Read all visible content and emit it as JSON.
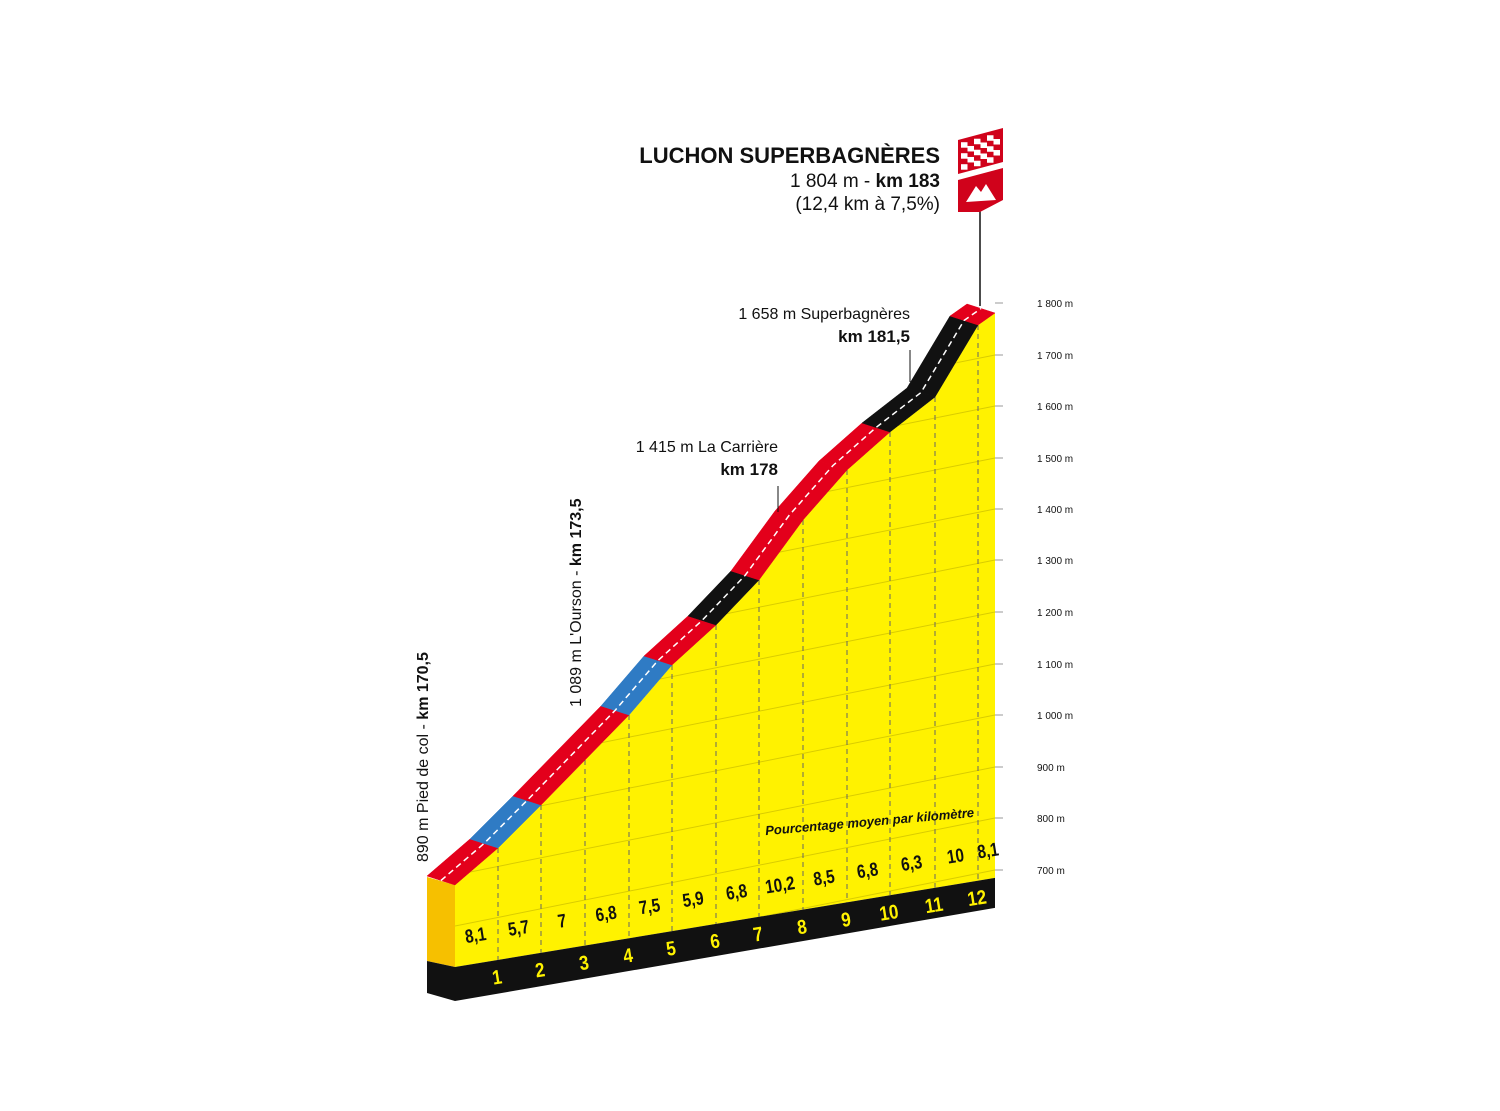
{
  "finish": {
    "name": "LUCHON SUPERBAGNÈRES",
    "altitude": "1 804 m - ",
    "km": "km 183",
    "climb": "(12,4 km à 7,5%)"
  },
  "points": [
    {
      "label": "890 m Pied de col - ",
      "km": "km 170,5"
    },
    {
      "label": "1 089 m L'Ourson - ",
      "km": "km 173,5"
    },
    {
      "label": "1 415 m La Carrière",
      "km": "km 178"
    },
    {
      "label": "1 658 m Superbagnères",
      "km": "km 181,5"
    }
  ],
  "axis_labels": [
    "700 m",
    "800 m",
    "900 m",
    "1 000 m",
    "1 100 m",
    "1 200 m",
    "1 300 m",
    "1 400 m",
    "1 500 m",
    "1 600 m",
    "1 700 m",
    "1 800 m"
  ],
  "legend": "Pourcentage moyen par kilomètre",
  "gradients": [
    "8,1",
    "5,7",
    "7",
    "6,8",
    "7,5",
    "5,9",
    "6,8",
    "10,2",
    "8,5",
    "6,8",
    "6,3",
    "10",
    "8,1"
  ],
  "km_markers": [
    "1",
    "2",
    "3",
    "4",
    "5",
    "6",
    "7",
    "8",
    "9",
    "10",
    "11",
    "12"
  ]
}
